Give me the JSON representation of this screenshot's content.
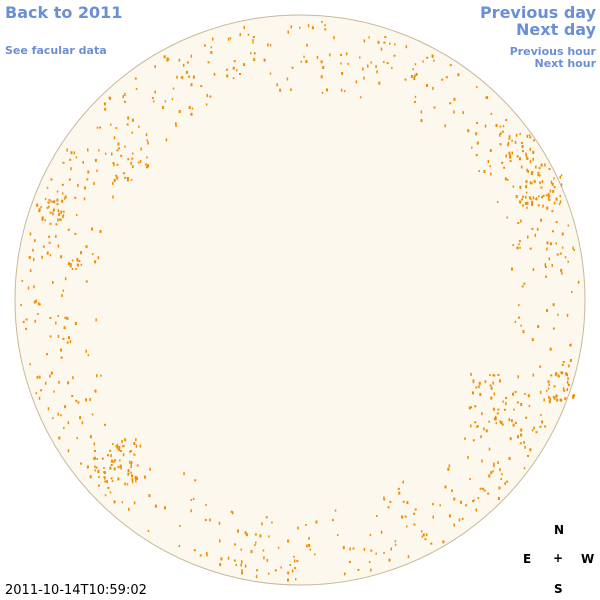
{
  "nav": {
    "back_label": "Back to 2011",
    "facular_label": "See facular data",
    "prev_day_label": "Previous day",
    "next_day_label": "Next day",
    "prev_hour_label": "Previous hour",
    "next_hour_label": "Next hour"
  },
  "compass": {
    "north": "N",
    "south": "S",
    "east": "E",
    "west": "W",
    "center": "+"
  },
  "timestamp": "2011-10-14T10:59:02",
  "colors": {
    "link": "#6b8fd6",
    "disk": "#fdf8ee",
    "limb": "#c9b89a",
    "facula": "#f08c00"
  }
}
